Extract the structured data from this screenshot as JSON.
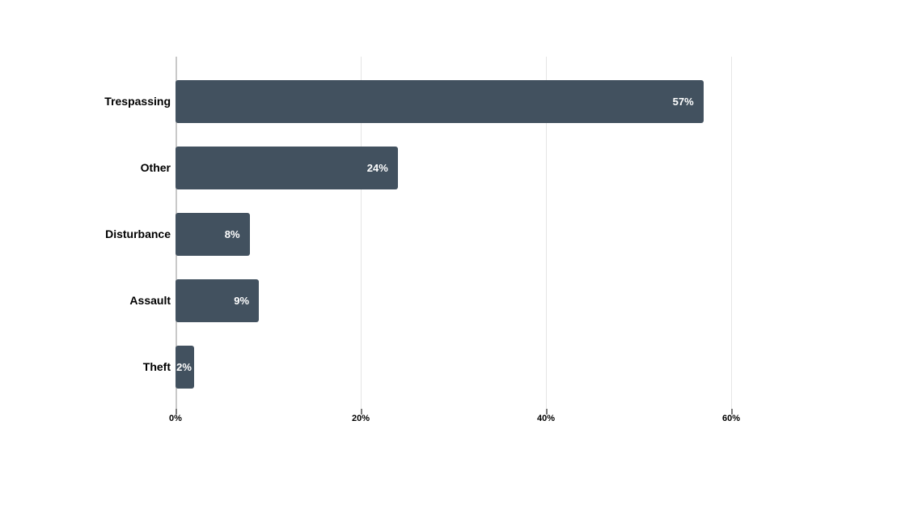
{
  "chart_data": {
    "type": "bar",
    "orientation": "horizontal",
    "title": "",
    "xlabel": "",
    "ylabel": "",
    "categories": [
      "Trespassing",
      "Other",
      "Disturbance",
      "Assault",
      "Theft"
    ],
    "values": [
      57,
      24,
      8,
      9,
      2
    ],
    "value_labels": [
      "57%",
      "24%",
      "8%",
      "9%",
      "2%"
    ],
    "x_tick_labels": [
      "0%",
      "20%",
      "40%",
      "60%"
    ],
    "x_tick_values": [
      0,
      20,
      40,
      60
    ],
    "xlim": [
      0,
      60
    ],
    "grid": "vertical-gridlines-on",
    "legend": "none",
    "colors": {
      "bar": "#42515F",
      "value_label": "#ffffff",
      "category_label": "#000000",
      "axis_tick_label": "#000000",
      "gridline": "#e5e5e5",
      "axis_line": "#c9c9c9",
      "background": "#ffffff"
    }
  }
}
